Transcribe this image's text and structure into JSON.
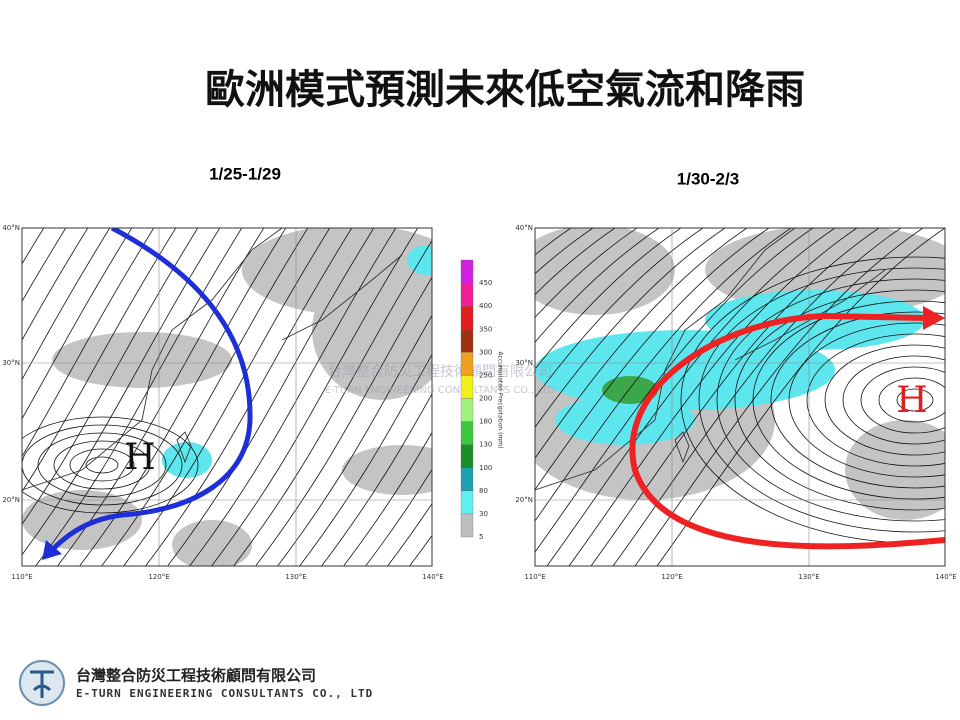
{
  "title": "歐洲模式預測未來低空氣流和降雨",
  "maps": [
    {
      "period": "1/25-1/29",
      "high_label": "H",
      "lat_labels": [
        "40°N",
        "30°N",
        "20°N"
      ],
      "lon_labels": [
        "110°E",
        "120°E",
        "130°E",
        "140°E"
      ]
    },
    {
      "period": "1/30-2/3",
      "high_label": "H",
      "lat_labels": [
        "40°N",
        "30°N",
        "20°N"
      ],
      "lon_labels": [
        "110°E",
        "120°E",
        "130°E",
        "140°E"
      ]
    }
  ],
  "colorbar": {
    "title": "Accumulated Precipitation (mm)",
    "levels": [
      5,
      30,
      80,
      100,
      130,
      180,
      200,
      250,
      300,
      350,
      400,
      450
    ]
  },
  "footer": {
    "company_zh": "台灣整合防災工程技術顧問有限公司",
    "company_en": "E-TURN ENGINEERING CONSULTANTS CO., LTD"
  }
}
